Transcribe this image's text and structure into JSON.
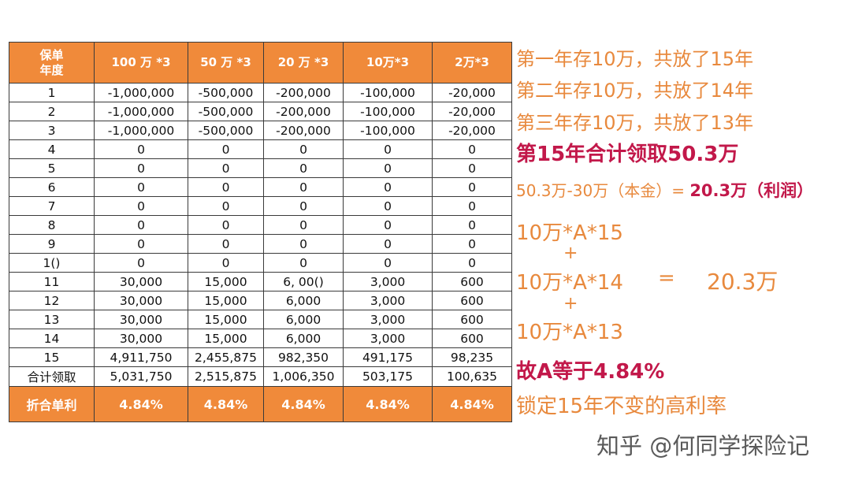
{
  "table": {
    "headers": [
      "保单\n年度",
      "100 万 *3",
      "50 万 *3",
      "20 万 *3",
      "10万*3",
      "2万*3"
    ],
    "rows": [
      [
        "1",
        "-1,000,000",
        "-500,000",
        "-200,000",
        "-100,000",
        "-20,000"
      ],
      [
        "2",
        "-1,000,000",
        "-500,000",
        "-200,000",
        "-100,000",
        "-20,000"
      ],
      [
        "3",
        "-1,000,000",
        "-500,000",
        "-200,000",
        "-100,000",
        "-20,000"
      ],
      [
        "4",
        "0",
        "0",
        "0",
        "0",
        "0"
      ],
      [
        "5",
        "0",
        "0",
        "0",
        "0",
        "0"
      ],
      [
        "6",
        "0",
        "0",
        "0",
        "0",
        "0"
      ],
      [
        "7",
        "0",
        "0",
        "0",
        "0",
        "0"
      ],
      [
        "8",
        "0",
        "0",
        "0",
        "0",
        "0"
      ],
      [
        "9",
        "0",
        "0",
        "0",
        "0",
        "0"
      ],
      [
        "1()",
        "0",
        "0",
        "0",
        "0",
        "0"
      ],
      [
        "11",
        "30,000",
        "15,000",
        "6, 00()",
        "3,000",
        "600"
      ],
      [
        "12",
        "30,000",
        "15,000",
        "6,000",
        "3,000",
        "600"
      ],
      [
        "13",
        "30,000",
        "15,000",
        "6,000",
        "3,000",
        "600"
      ],
      [
        "14",
        "30,000",
        "15,000",
        "6,000",
        "3,000",
        "600"
      ],
      [
        "15",
        "4,911,750",
        "2,455,875",
        "982,350",
        "491,175",
        "98,235"
      ],
      [
        "合计领取",
        "5,031,750",
        "2,515,875",
        "1,006,350",
        "503,175",
        "100,635"
      ]
    ],
    "footer": [
      "折合单利",
      "4.84%",
      "4.84%",
      "4.84%",
      "4.84%",
      "4.84%"
    ]
  },
  "notes": {
    "line1": "第一年存10万，共放了15年",
    "line2": "第二年存10万，共放了14年",
    "line3": "第三年存10万，共放了13年",
    "line4": "第15年合计领取50.3万",
    "line5_prefix": "50.3万-30万（本金）= ",
    "line5_highlight": "20.3万（利润）",
    "formula1": "10万*A*15",
    "plus": "+",
    "formula2": "10万*A*14",
    "equals": "=",
    "result": "20.3万",
    "formula3": "10万*A*13",
    "conclusion": "故A等于4.84%",
    "tagline": "锁定15年不变的高利率"
  },
  "watermark": "知乎 @何同学探险记",
  "colors": {
    "accent_orange": "#f08a3a",
    "text_orange": "#e8893d",
    "highlight_red": "#c2184a"
  }
}
